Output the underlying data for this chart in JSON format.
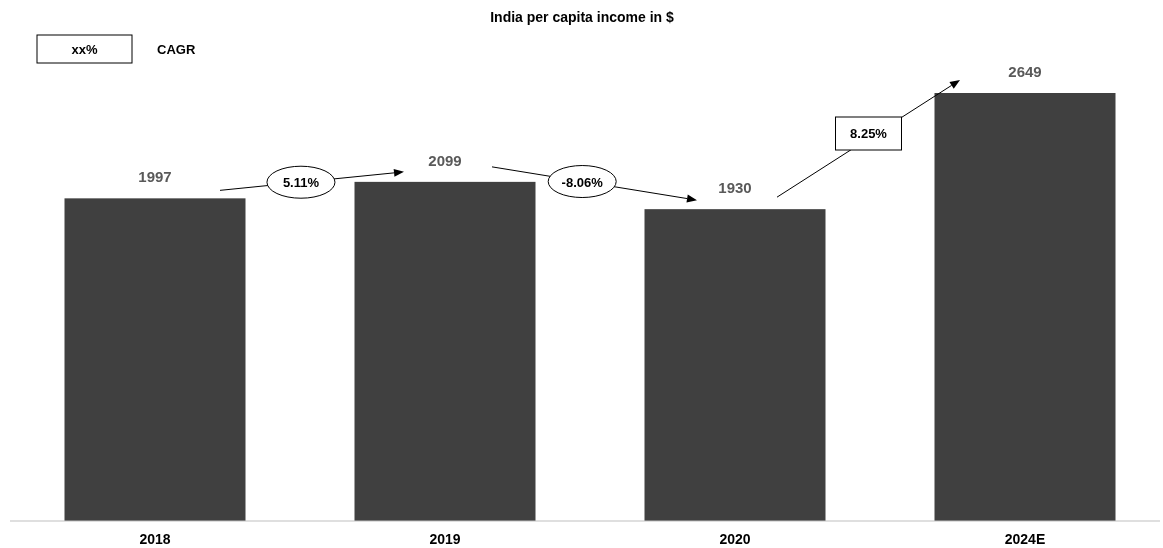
{
  "chart_data": {
    "type": "bar",
    "title": "India per capita income in $",
    "categories": [
      "2018",
      "2019",
      "2020",
      "2024E"
    ],
    "values": [
      1997,
      2099,
      1930,
      2649
    ],
    "color": "#404040",
    "data_labels": true,
    "annotations": [
      "xx%",
      "CAGR",
      "5.11%",
      "-8.06%",
      "8.25%"
    ]
  }
}
